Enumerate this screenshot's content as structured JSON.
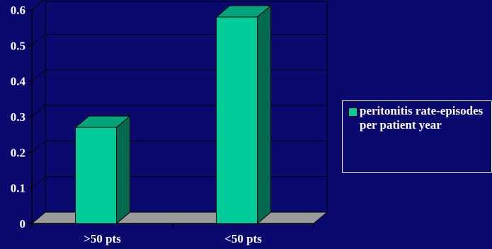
{
  "colors": {
    "background": "#0a0a6e",
    "bar_front": "#00cc99",
    "bar_top": "#00a37a",
    "bar_side": "#006a50",
    "floor": "#9a9a9a",
    "text": "#ffffff"
  },
  "chart_data": {
    "type": "bar",
    "title": "",
    "xlabel": "",
    "ylabel": "",
    "categories": [
      ">50 pts",
      "<50 pts"
    ],
    "series": [
      {
        "name": "peritonitis rate-episodes per patient year",
        "values": [
          0.27,
          0.58
        ]
      }
    ],
    "ylim": [
      0,
      0.6
    ],
    "yticks": [
      "0",
      "0.1",
      "0.2",
      "0.3",
      "0.4",
      "0.5",
      "0.6"
    ],
    "grid": true,
    "legend_position": "right"
  },
  "legend": {
    "label": "peritonitis rate-episodes per patient year"
  }
}
